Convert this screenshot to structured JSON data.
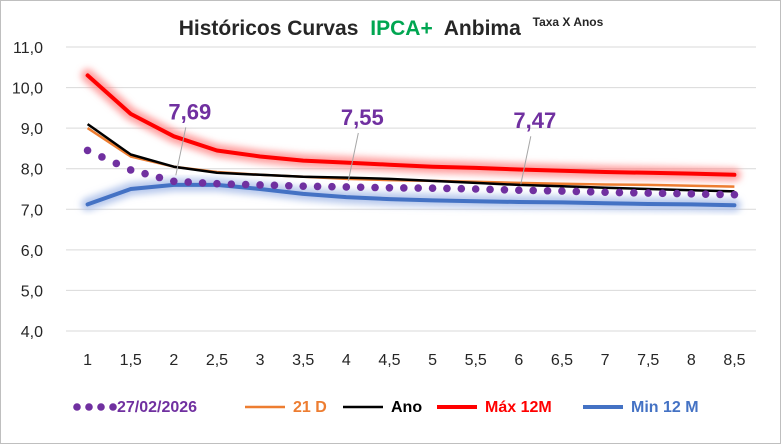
{
  "chart_data": {
    "type": "line",
    "title": {
      "part1": "Históricos Curvas",
      "part2": "IPCA+",
      "part3": "Anbima",
      "superscript": "Taxa X Anos"
    },
    "x": [
      1,
      1.5,
      2,
      2.5,
      3,
      3.5,
      4,
      4.5,
      5,
      5.5,
      6,
      6.5,
      7,
      7.5,
      8,
      8.5
    ],
    "x_tick_labels": [
      "1",
      "1,5",
      "2",
      "2,5",
      "3",
      "3,5",
      "4",
      "4,5",
      "5",
      "5,5",
      "6",
      "6,5",
      "7",
      "7,5",
      "8",
      "8,5"
    ],
    "ylim": [
      4.0,
      11.0
    ],
    "y_ticks": [
      4.0,
      5.0,
      6.0,
      7.0,
      8.0,
      9.0,
      10.0,
      11.0
    ],
    "y_tick_labels": [
      "4,0",
      "5,0",
      "6,0",
      "7,0",
      "8,0",
      "9,0",
      "10,0",
      "11,0"
    ],
    "grid": "horizontal",
    "legend_position": "bottom",
    "series": [
      {
        "name": "27/02/2026",
        "style": "dotted",
        "color": "#7030a0",
        "values": [
          8.45,
          7.97,
          7.69,
          7.63,
          7.6,
          7.57,
          7.55,
          7.53,
          7.52,
          7.5,
          7.47,
          7.45,
          7.42,
          7.4,
          7.38,
          7.36
        ]
      },
      {
        "name": "21 D",
        "style": "solid",
        "color": "#ed7d31",
        "values": [
          9.0,
          8.3,
          8.05,
          7.92,
          7.85,
          7.8,
          7.75,
          7.72,
          7.7,
          7.68,
          7.65,
          7.63,
          7.61,
          7.6,
          7.58,
          7.56
        ]
      },
      {
        "name": "Ano",
        "style": "solid",
        "color": "#000000",
        "values": [
          9.1,
          8.35,
          8.05,
          7.9,
          7.85,
          7.8,
          7.78,
          7.75,
          7.7,
          7.65,
          7.6,
          7.57,
          7.53,
          7.5,
          7.47,
          7.44
        ]
      },
      {
        "name": "Máx 12M",
        "style": "glow",
        "color": "#ff0000",
        "values": [
          10.3,
          9.35,
          8.8,
          8.45,
          8.3,
          8.2,
          8.15,
          8.1,
          8.05,
          8.02,
          7.98,
          7.95,
          7.92,
          7.9,
          7.88,
          7.85
        ]
      },
      {
        "name": "Min 12 M",
        "style": "glow",
        "color": "#4472c4",
        "values": [
          7.12,
          7.5,
          7.6,
          7.6,
          7.5,
          7.38,
          7.3,
          7.25,
          7.22,
          7.2,
          7.18,
          7.17,
          7.15,
          7.13,
          7.12,
          7.1
        ]
      }
    ],
    "data_labels": [
      {
        "x": 2,
        "y": 7.69,
        "text": "7,69"
      },
      {
        "x": 4,
        "y": 7.55,
        "text": "7,55"
      },
      {
        "x": 6,
        "y": 7.47,
        "text": "7,47"
      }
    ]
  }
}
